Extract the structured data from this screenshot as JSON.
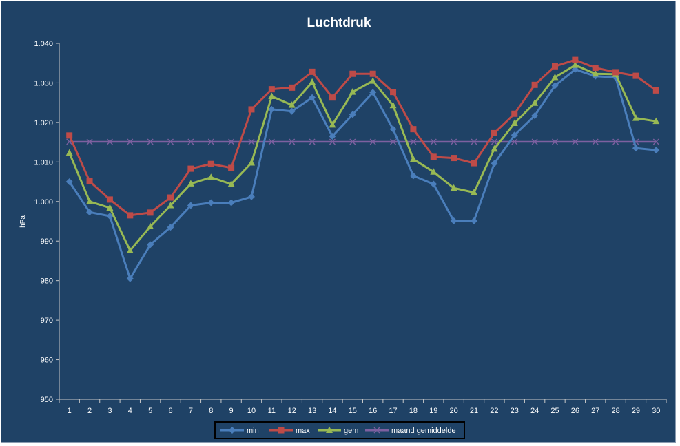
{
  "colors": {
    "background": "#1f4266",
    "axis": "#c8c8c8",
    "text": "#ffffff",
    "min": "#4a7ebb",
    "max": "#be4b48",
    "gem": "#98b954",
    "avg": "#7d60a0",
    "legend_bg": "#1f4266",
    "legend_border": "#000000"
  },
  "chart_data": {
    "type": "line",
    "title": "Luchtdruk",
    "xlabel": "",
    "ylabel": "hPa",
    "ylim": [
      950,
      1040
    ],
    "yticks": [
      950,
      960,
      970,
      980,
      990,
      1000,
      1010,
      1020,
      1030,
      1040
    ],
    "ytick_labels": [
      "950",
      "960",
      "970",
      "980",
      "990",
      "1.000",
      "1.010",
      "1.020",
      "1.030",
      "1.040"
    ],
    "categories": [
      "1",
      "2",
      "3",
      "4",
      "5",
      "6",
      "7",
      "8",
      "9",
      "10",
      "11",
      "12",
      "13",
      "14",
      "15",
      "16",
      "17",
      "18",
      "19",
      "20",
      "21",
      "22",
      "23",
      "24",
      "25",
      "26",
      "27",
      "28",
      "29",
      "30"
    ],
    "grid": false,
    "legend": "bottom",
    "series": [
      {
        "name": "min",
        "marker": "diamond",
        "values": [
          1005.0,
          997.3,
          996.3,
          980.5,
          989.1,
          993.5,
          999.0,
          999.7,
          999.7,
          1001.2,
          1023.3,
          1022.8,
          1026.3,
          1016.5,
          1022.0,
          1027.6,
          1018.3,
          1006.5,
          1004.4,
          995.1,
          995.1,
          1009.6,
          1016.8,
          1021.7,
          1029.3,
          1033.4,
          1031.7,
          1031.4,
          1013.5,
          1013.0
        ]
      },
      {
        "name": "max",
        "marker": "square",
        "values": [
          1016.7,
          1005.1,
          1000.5,
          996.5,
          997.2,
          1001.0,
          1008.3,
          1009.5,
          1008.5,
          1023.3,
          1028.4,
          1028.8,
          1032.8,
          1026.3,
          1032.3,
          1032.3,
          1027.7,
          1018.3,
          1011.3,
          1011.0,
          1009.7,
          1017.3,
          1022.2,
          1029.5,
          1034.2,
          1035.8,
          1033.8,
          1032.7,
          1031.8,
          1028.1
        ]
      },
      {
        "name": "gem",
        "marker": "triangle",
        "values": [
          1012.3,
          1000.0,
          998.4,
          987.6,
          993.7,
          999.0,
          1004.5,
          1006.1,
          1004.4,
          1009.8,
          1026.6,
          1024.4,
          1030.2,
          1019.4,
          1027.7,
          1030.5,
          1024.3,
          1010.7,
          1007.5,
          1003.4,
          1002.3,
          1013.3,
          1019.8,
          1024.9,
          1031.4,
          1034.5,
          1032.3,
          1032.2,
          1021.1,
          1020.3
        ]
      },
      {
        "name": "maand gemiddelde",
        "marker": "x",
        "values": [
          1015.1,
          1015.1,
          1015.1,
          1015.1,
          1015.1,
          1015.1,
          1015.1,
          1015.1,
          1015.1,
          1015.1,
          1015.1,
          1015.1,
          1015.1,
          1015.1,
          1015.1,
          1015.1,
          1015.1,
          1015.1,
          1015.1,
          1015.1,
          1015.1,
          1015.1,
          1015.1,
          1015.1,
          1015.1,
          1015.1,
          1015.1,
          1015.1,
          1015.1,
          1015.1
        ]
      }
    ]
  }
}
